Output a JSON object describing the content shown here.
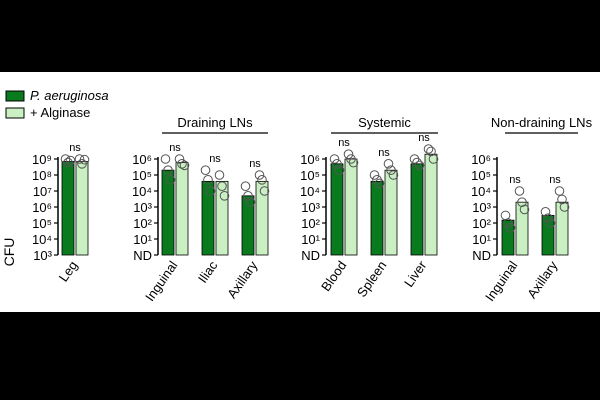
{
  "legend": {
    "items": [
      {
        "label": "P. aeruginosa",
        "italic": true,
        "color": "#0a7a1e"
      },
      {
        "label": "+ Alginase",
        "italic": false,
        "color": "#c9efc2"
      }
    ]
  },
  "y_axis": {
    "label": "CFU",
    "nd_label": "ND"
  },
  "colors": {
    "control": "#0a7a1e",
    "alginase": "#c9efc2",
    "point_edge": "#555555"
  },
  "chart_data": [
    {
      "type": "bar",
      "title": "",
      "ylabel": "CFU",
      "yscale": "log",
      "ytick_labels": [
        "10³",
        "10⁴",
        "10⁵",
        "10⁶",
        "10⁷",
        "10⁸",
        "10⁹"
      ],
      "ylim": [
        1000,
        1000000000
      ],
      "categories": [
        "Leg"
      ],
      "series": [
        {
          "name": "P. aeruginosa",
          "values": [
            700000000
          ],
          "points": [
            [
              1000000000,
              600000000,
              800000000
            ]
          ]
        },
        {
          "name": "+ Alginase",
          "values": [
            700000000
          ],
          "points": [
            [
              1000000000,
              500000000,
              900000000
            ]
          ]
        }
      ],
      "annotations": [
        "ns"
      ]
    },
    {
      "type": "bar",
      "title": "Draining LNs",
      "yscale": "log",
      "ytick_labels": [
        "ND",
        "10¹",
        "10²",
        "10³",
        "10⁴",
        "10⁵",
        "10⁶"
      ],
      "ylim": [
        "ND",
        1000000
      ],
      "categories": [
        "Inguinal",
        "Iliac",
        "Axillary"
      ],
      "series": [
        {
          "name": "P. aeruginosa",
          "values": [
            200000,
            40000,
            5000
          ],
          "points": [
            [
              1000000,
              200000,
              50000
            ],
            [
              200000,
              50000,
              10000
            ],
            [
              20000,
              5000,
              2000
            ]
          ]
        },
        {
          "name": "+ Alginase",
          "values": [
            600000,
            40000,
            40000
          ],
          "points": [
            [
              1000000,
              500000,
              400000
            ],
            [
              100000,
              20000,
              5000
            ],
            [
              100000,
              50000,
              10000
            ]
          ]
        }
      ],
      "annotations": [
        "ns",
        "ns",
        "ns"
      ]
    },
    {
      "type": "bar",
      "title": "Systemic",
      "yscale": "log",
      "ytick_labels": [
        "ND",
        "10¹",
        "10²",
        "10³",
        "10⁴",
        "10⁵",
        "10⁶"
      ],
      "ylim": [
        "ND",
        1000000
      ],
      "categories": [
        "Blood",
        "Spleen",
        "Liver"
      ],
      "series": [
        {
          "name": "P. aeruginosa",
          "values": [
            500000,
            40000,
            500000
          ],
          "points": [
            [
              1000000,
              500000,
              200000
            ],
            [
              100000,
              50000,
              30000
            ],
            [
              1000000,
              600000,
              400000
            ]
          ]
        },
        {
          "name": "+ Alginase",
          "values": [
            1000000,
            200000,
            2000000
          ],
          "points": [
            [
              2000000,
              1000000,
              600000
            ],
            [
              500000,
              200000,
              100000
            ],
            [
              8000000,
              3000000,
              1000000
            ]
          ]
        }
      ],
      "annotations": [
        "ns",
        "ns",
        "ns"
      ]
    },
    {
      "type": "bar",
      "title": "Non-draining LNs",
      "yscale": "log",
      "ytick_labels": [
        "ND",
        "10¹",
        "10²",
        "10³",
        "10⁴",
        "10⁵",
        "10⁶"
      ],
      "ylim": [
        "ND",
        1000000
      ],
      "categories": [
        "Inguinal",
        "Axillary"
      ],
      "series": [
        {
          "name": "P. aeruginosa",
          "values": [
            150,
            300
          ],
          "points": [
            [
              300,
              100,
              50
            ],
            [
              500,
              200,
              100
            ]
          ]
        },
        {
          "name": "+ Alginase",
          "values": [
            2000,
            2000
          ],
          "points": [
            [
              10000,
              2000,
              700
            ],
            [
              10000,
              3000,
              1000
            ]
          ]
        }
      ],
      "annotations": [
        "ns",
        "ns"
      ]
    }
  ]
}
